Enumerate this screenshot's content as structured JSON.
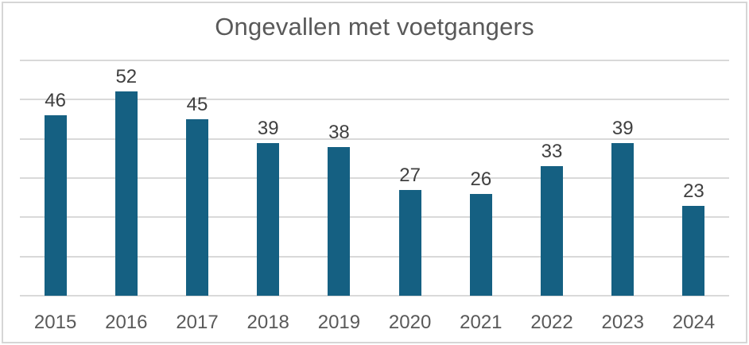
{
  "window": {
    "background": "#ffffff",
    "border_color": "#d6d6d6"
  },
  "chart_data": {
    "type": "bar",
    "title": "Ongevallen met voetgangers",
    "categories": [
      "2015",
      "2016",
      "2017",
      "2018",
      "2019",
      "2020",
      "2021",
      "2022",
      "2023",
      "2024"
    ],
    "values": [
      46,
      52,
      45,
      39,
      38,
      27,
      26,
      33,
      39,
      23
    ],
    "xlabel": "",
    "ylabel": "",
    "ylim": [
      0,
      60
    ],
    "gridline_step": 10,
    "grid": true,
    "legend": "none",
    "data_labels": true,
    "colors": {
      "bar": "#156082",
      "gridline": "#d9d9d9",
      "title_text": "#595959",
      "data_label_text": "#404040",
      "axis_label_text": "#595959"
    }
  }
}
